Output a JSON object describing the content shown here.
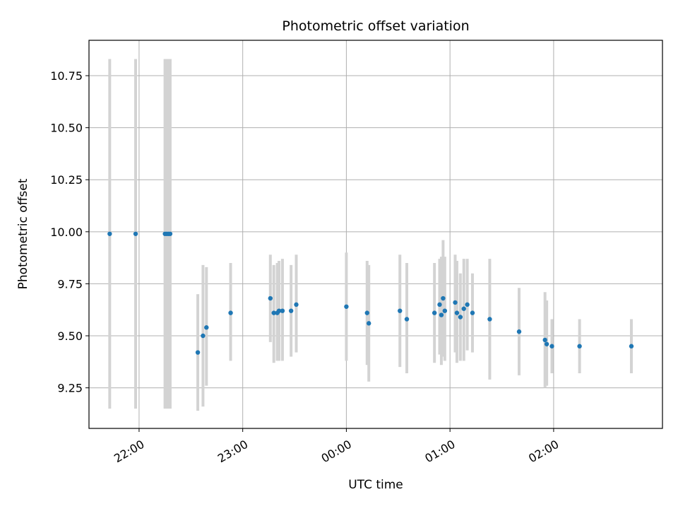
{
  "chart_data": {
    "type": "scatter",
    "title": "Photometric offset variation",
    "xlabel": "UTC time",
    "ylabel": "Photometric offset",
    "x_axis_kind": "time",
    "xlim": [
      "21:31",
      "03:03"
    ],
    "ylim": [
      9.055,
      10.92
    ],
    "x_ticks": [
      "22:00",
      "23:00",
      "00:00",
      "01:00",
      "02:00"
    ],
    "x_tick_minutes_from_2200": [
      0,
      60,
      120,
      180,
      240
    ],
    "y_ticks": [
      9.25,
      9.5,
      9.75,
      10.0,
      10.25,
      10.5,
      10.75
    ],
    "y_tick_labels": [
      "9.25",
      "9.50",
      "9.75",
      "10.00",
      "10.25",
      "10.50",
      "10.75"
    ],
    "grid": true,
    "marker_color": "#1f77b4",
    "errorbar_color": "#d3d3d3",
    "points": [
      {
        "time": "21:43",
        "y": 9.99,
        "ylow": 9.15,
        "yhigh": 10.83
      },
      {
        "time": "21:58",
        "y": 9.99,
        "ylow": 9.15,
        "yhigh": 10.83
      },
      {
        "time": "22:15",
        "y": 9.99,
        "ylow": 9.15,
        "yhigh": 10.83
      },
      {
        "time": "22:16",
        "y": 9.99,
        "ylow": 9.15,
        "yhigh": 10.83
      },
      {
        "time": "22:17",
        "y": 9.99,
        "ylow": 9.15,
        "yhigh": 10.83
      },
      {
        "time": "22:18",
        "y": 9.99,
        "ylow": 9.15,
        "yhigh": 10.83
      },
      {
        "time": "22:34",
        "y": 9.42,
        "ylow": 9.14,
        "yhigh": 9.7
      },
      {
        "time": "22:37",
        "y": 9.5,
        "ylow": 9.16,
        "yhigh": 9.84
      },
      {
        "time": "22:39",
        "y": 9.54,
        "ylow": 9.26,
        "yhigh": 9.83
      },
      {
        "time": "22:53",
        "y": 9.61,
        "ylow": 9.38,
        "yhigh": 9.85
      },
      {
        "time": "23:16",
        "y": 9.68,
        "ylow": 9.47,
        "yhigh": 9.89
      },
      {
        "time": "23:18",
        "y": 9.61,
        "ylow": 9.37,
        "yhigh": 9.84
      },
      {
        "time": "23:20",
        "y": 9.61,
        "ylow": 9.38,
        "yhigh": 9.85
      },
      {
        "time": "23:21",
        "y": 9.62,
        "ylow": 9.38,
        "yhigh": 9.86
      },
      {
        "time": "23:23",
        "y": 9.62,
        "ylow": 9.38,
        "yhigh": 9.87
      },
      {
        "time": "23:28",
        "y": 9.62,
        "ylow": 9.4,
        "yhigh": 9.84
      },
      {
        "time": "23:31",
        "y": 9.65,
        "ylow": 9.42,
        "yhigh": 9.89
      },
      {
        "time": "00:00",
        "y": 9.64,
        "ylow": 9.38,
        "yhigh": 9.9
      },
      {
        "time": "00:12",
        "y": 9.61,
        "ylow": 9.36,
        "yhigh": 9.86
      },
      {
        "time": "00:13",
        "y": 9.56,
        "ylow": 9.28,
        "yhigh": 9.84
      },
      {
        "time": "00:31",
        "y": 9.62,
        "ylow": 9.35,
        "yhigh": 9.89
      },
      {
        "time": "00:35",
        "y": 9.58,
        "ylow": 9.32,
        "yhigh": 9.85
      },
      {
        "time": "00:51",
        "y": 9.61,
        "ylow": 9.37,
        "yhigh": 9.85
      },
      {
        "time": "00:54",
        "y": 9.65,
        "ylow": 9.41,
        "yhigh": 9.87
      },
      {
        "time": "00:55",
        "y": 9.6,
        "ylow": 9.36,
        "yhigh": 9.88
      },
      {
        "time": "00:56",
        "y": 9.68,
        "ylow": 9.4,
        "yhigh": 9.96
      },
      {
        "time": "00:57",
        "y": 9.62,
        "ylow": 9.38,
        "yhigh": 9.88
      },
      {
        "time": "01:03",
        "y": 9.66,
        "ylow": 9.42,
        "yhigh": 9.89
      },
      {
        "time": "01:04",
        "y": 9.61,
        "ylow": 9.37,
        "yhigh": 9.86
      },
      {
        "time": "01:06",
        "y": 9.59,
        "ylow": 9.38,
        "yhigh": 9.8
      },
      {
        "time": "01:08",
        "y": 9.63,
        "ylow": 9.38,
        "yhigh": 9.87
      },
      {
        "time": "01:10",
        "y": 9.65,
        "ylow": 9.43,
        "yhigh": 9.87
      },
      {
        "time": "01:13",
        "y": 9.61,
        "ylow": 9.42,
        "yhigh": 9.8
      },
      {
        "time": "01:23",
        "y": 9.58,
        "ylow": 9.29,
        "yhigh": 9.87
      },
      {
        "time": "01:40",
        "y": 9.52,
        "ylow": 9.31,
        "yhigh": 9.73
      },
      {
        "time": "01:55",
        "y": 9.48,
        "ylow": 9.25,
        "yhigh": 9.71
      },
      {
        "time": "01:56",
        "y": 9.46,
        "ylow": 9.26,
        "yhigh": 9.67
      },
      {
        "time": "01:59",
        "y": 9.45,
        "ylow": 9.32,
        "yhigh": 9.58
      },
      {
        "time": "02:15",
        "y": 9.45,
        "ylow": 9.32,
        "yhigh": 9.58
      },
      {
        "time": "02:45",
        "y": 9.45,
        "ylow": 9.32,
        "yhigh": 9.58
      }
    ]
  }
}
